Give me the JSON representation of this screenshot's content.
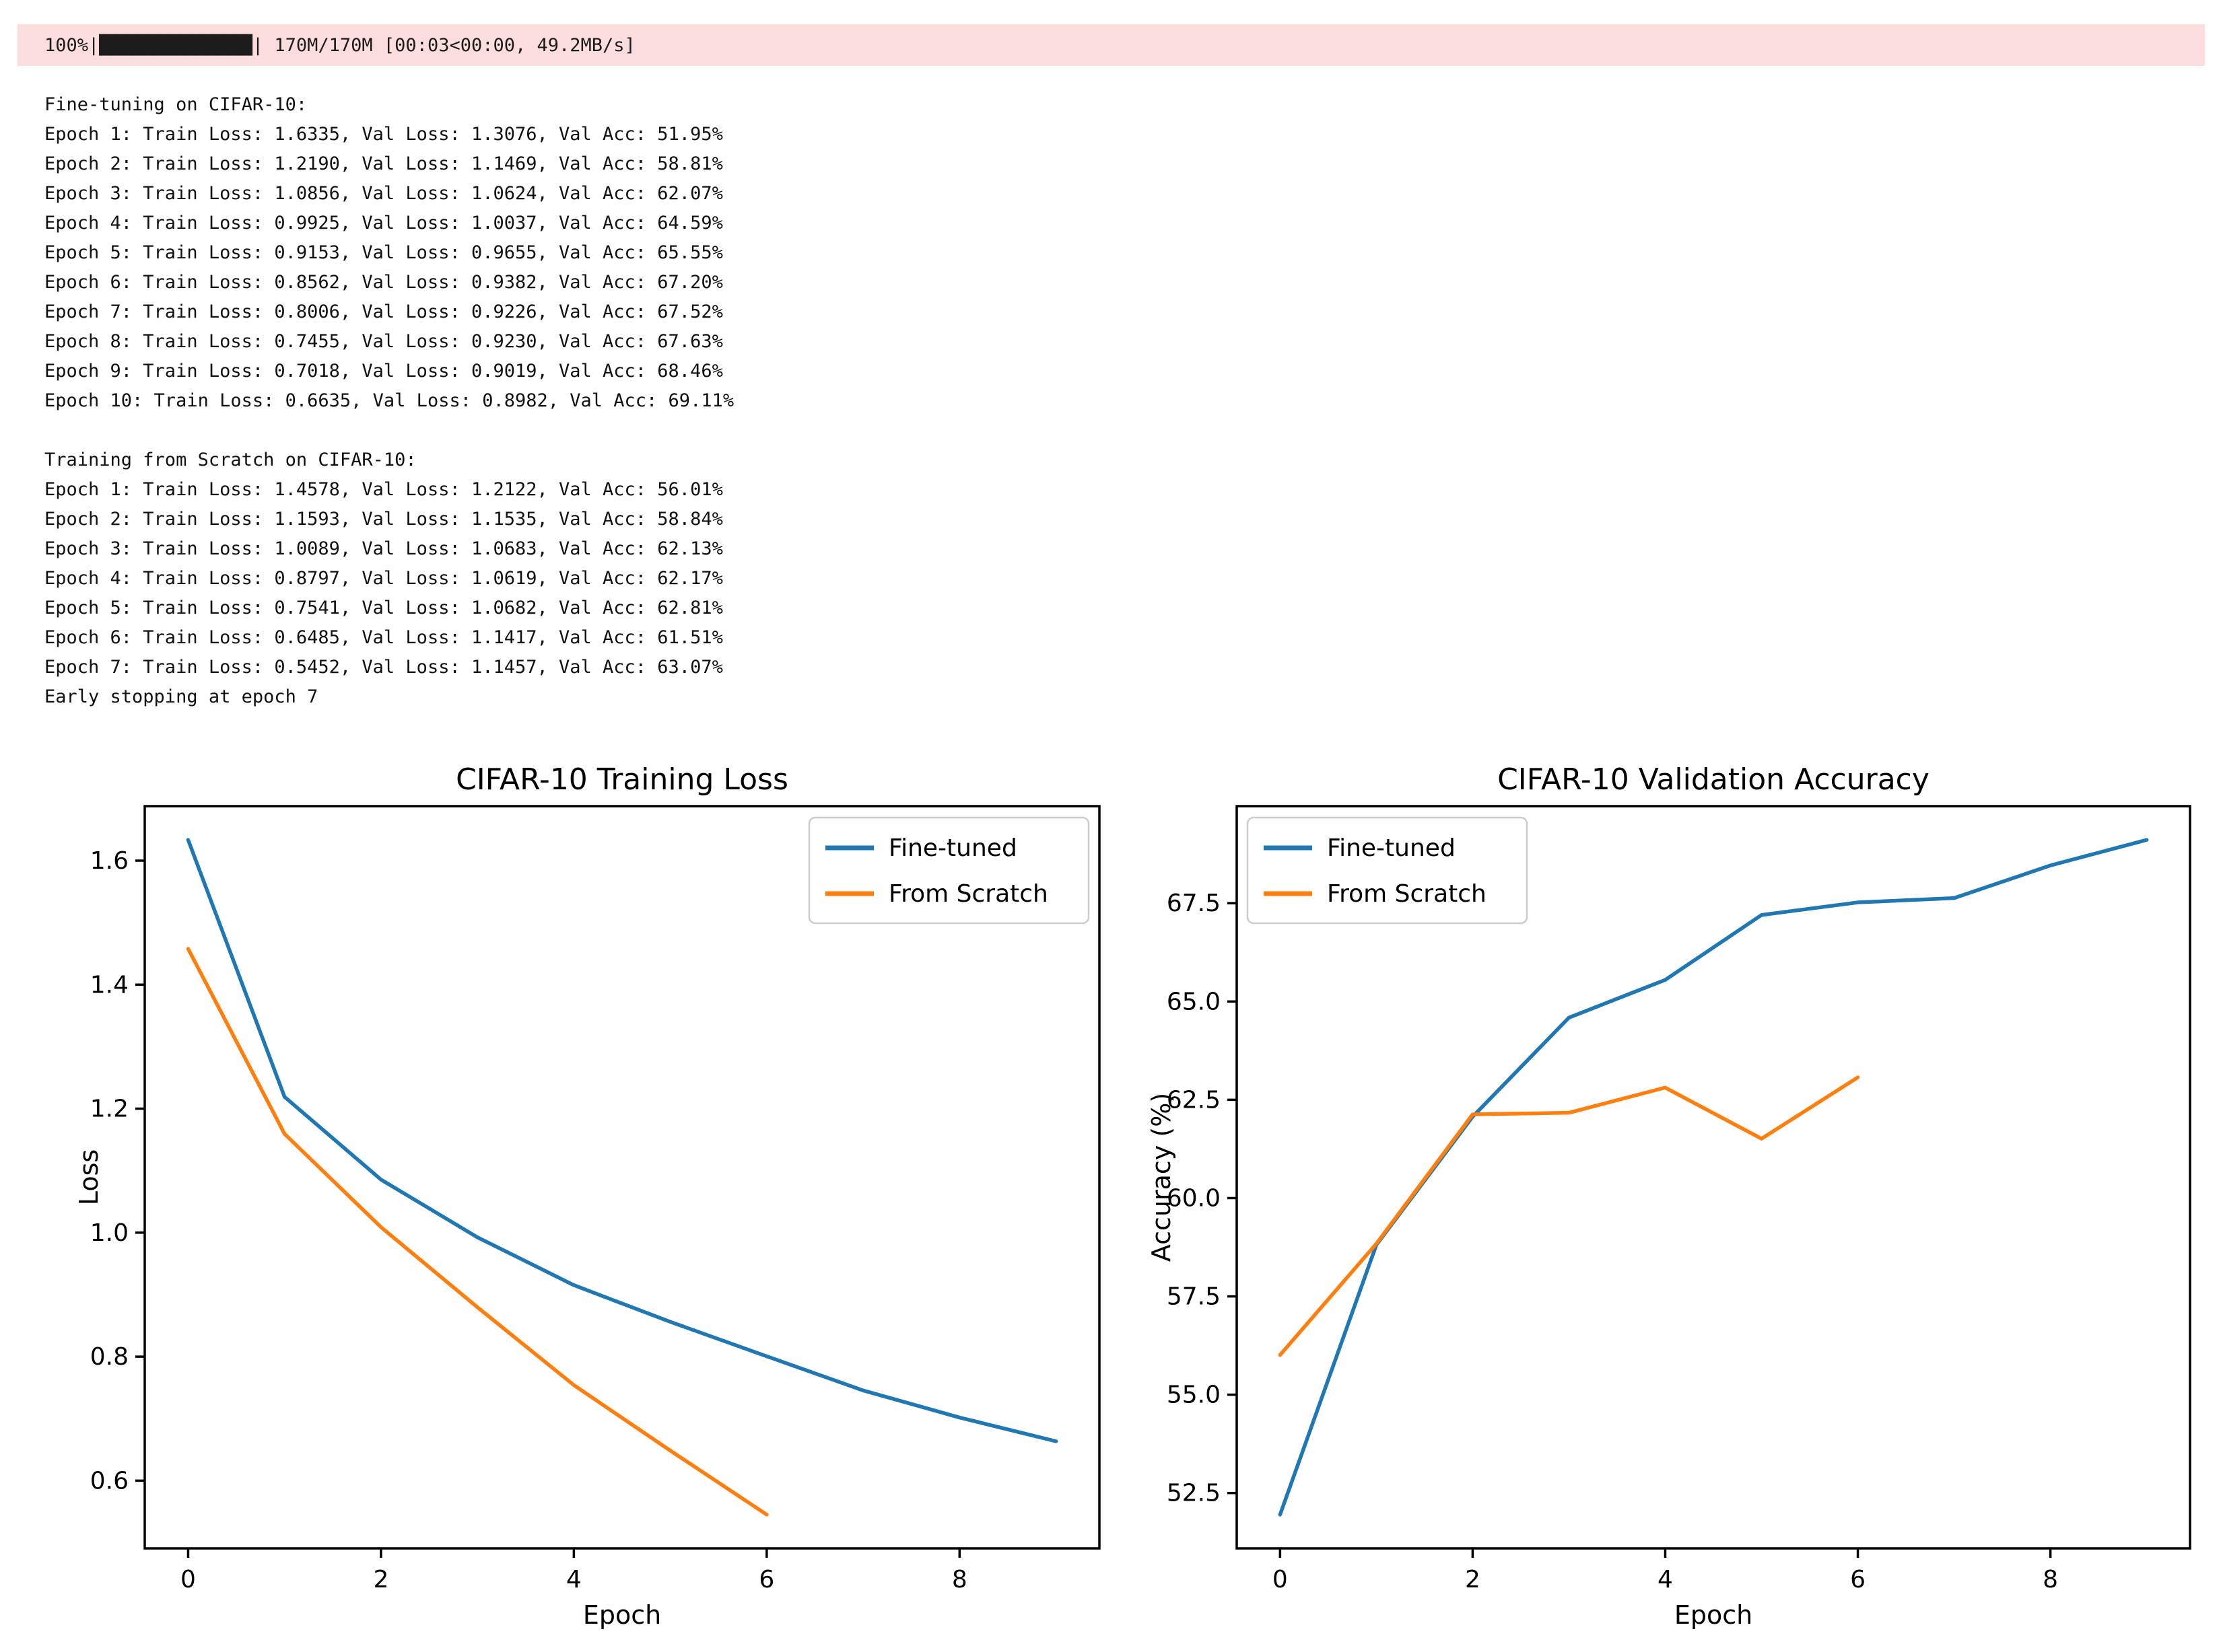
{
  "progress": {
    "line": "100%|██████████████| 170M/170M [00:03<00:00, 49.2MB/s]"
  },
  "colors": {
    "stderr_background": "#fcdddd",
    "fine_tuned_line": "#1f77b4",
    "from_scratch_line": "#ff7f0e"
  },
  "log": {
    "fine_tuning": {
      "header": "Fine-tuning on CIFAR-10:",
      "lines": [
        "Epoch 1: Train Loss: 1.6335, Val Loss: 1.3076, Val Acc: 51.95%",
        "Epoch 2: Train Loss: 1.2190, Val Loss: 1.1469, Val Acc: 58.81%",
        "Epoch 3: Train Loss: 1.0856, Val Loss: 1.0624, Val Acc: 62.07%",
        "Epoch 4: Train Loss: 0.9925, Val Loss: 1.0037, Val Acc: 64.59%",
        "Epoch 5: Train Loss: 0.9153, Val Loss: 0.9655, Val Acc: 65.55%",
        "Epoch 6: Train Loss: 0.8562, Val Loss: 0.9382, Val Acc: 67.20%",
        "Epoch 7: Train Loss: 0.8006, Val Loss: 0.9226, Val Acc: 67.52%",
        "Epoch 8: Train Loss: 0.7455, Val Loss: 0.9230, Val Acc: 67.63%",
        "Epoch 9: Train Loss: 0.7018, Val Loss: 0.9019, Val Acc: 68.46%",
        "Epoch 10: Train Loss: 0.6635, Val Loss: 0.8982, Val Acc: 69.11%"
      ]
    },
    "from_scratch": {
      "header": "Training from Scratch on CIFAR-10:",
      "lines": [
        "Epoch 1: Train Loss: 1.4578, Val Loss: 1.2122, Val Acc: 56.01%",
        "Epoch 2: Train Loss: 1.1593, Val Loss: 1.1535, Val Acc: 58.84%",
        "Epoch 3: Train Loss: 1.0089, Val Loss: 1.0683, Val Acc: 62.13%",
        "Epoch 4: Train Loss: 0.8797, Val Loss: 1.0619, Val Acc: 62.17%",
        "Epoch 5: Train Loss: 0.7541, Val Loss: 1.0682, Val Acc: 62.81%",
        "Epoch 6: Train Loss: 0.6485, Val Loss: 1.1417, Val Acc: 61.51%",
        "Epoch 7: Train Loss: 0.5452, Val Loss: 1.1457, Val Acc: 63.07%"
      ],
      "footer": "Early stopping at epoch 7"
    }
  },
  "chart_data": [
    {
      "type": "line",
      "title": "CIFAR-10 Training Loss",
      "xlabel": "Epoch",
      "ylabel": "Loss",
      "x": [
        0,
        1,
        2,
        3,
        4,
        5,
        6,
        7,
        8,
        9
      ],
      "series": [
        {
          "name": "Fine-tuned",
          "color": "#1f77b4",
          "values": [
            1.6335,
            1.219,
            1.0856,
            0.9925,
            0.9153,
            0.8562,
            0.8006,
            0.7455,
            0.7018,
            0.6635
          ]
        },
        {
          "name": "From Scratch",
          "color": "#ff7f0e",
          "values": [
            1.4578,
            1.1593,
            1.0089,
            0.8797,
            0.7541,
            0.6485,
            0.5452
          ]
        }
      ],
      "xlim": [
        -0.45,
        9.45
      ],
      "ylim": [
        0.49079,
        1.68791
      ],
      "xticks": [
        0,
        2,
        4,
        6,
        8
      ],
      "xtick_labels": [
        "0",
        "2",
        "4",
        "6",
        "8"
      ],
      "yticks": [
        0.6,
        0.8,
        1.0,
        1.2,
        1.4,
        1.6
      ],
      "ytick_labels": [
        "0.6",
        "0.8",
        "1.0",
        "1.2",
        "1.4",
        "1.6"
      ],
      "grid": false,
      "legend_pos": "top-right"
    },
    {
      "type": "line",
      "title": "CIFAR-10 Validation Accuracy",
      "xlabel": "Epoch",
      "ylabel": "Accuracy (%)",
      "x": [
        0,
        1,
        2,
        3,
        4,
        5,
        6,
        7,
        8,
        9
      ],
      "series": [
        {
          "name": "Fine-tuned",
          "color": "#1f77b4",
          "values": [
            51.95,
            58.81,
            62.07,
            64.59,
            65.55,
            67.2,
            67.52,
            67.63,
            68.46,
            69.11
          ]
        },
        {
          "name": "From Scratch",
          "color": "#ff7f0e",
          "values": [
            56.01,
            58.84,
            62.13,
            62.17,
            62.81,
            61.51,
            63.07
          ]
        }
      ],
      "xlim": [
        -0.45,
        9.45
      ],
      "ylim": [
        51.092,
        69.968
      ],
      "xticks": [
        0,
        2,
        4,
        6,
        8
      ],
      "xtick_labels": [
        "0",
        "2",
        "4",
        "6",
        "8"
      ],
      "yticks": [
        52.5,
        55.0,
        57.5,
        60.0,
        62.5,
        65.0,
        67.5
      ],
      "ytick_labels": [
        "52.5",
        "55.0",
        "57.5",
        "60.0",
        "62.5",
        "65.0",
        "67.5"
      ],
      "grid": false,
      "legend_pos": "top-left"
    }
  ]
}
